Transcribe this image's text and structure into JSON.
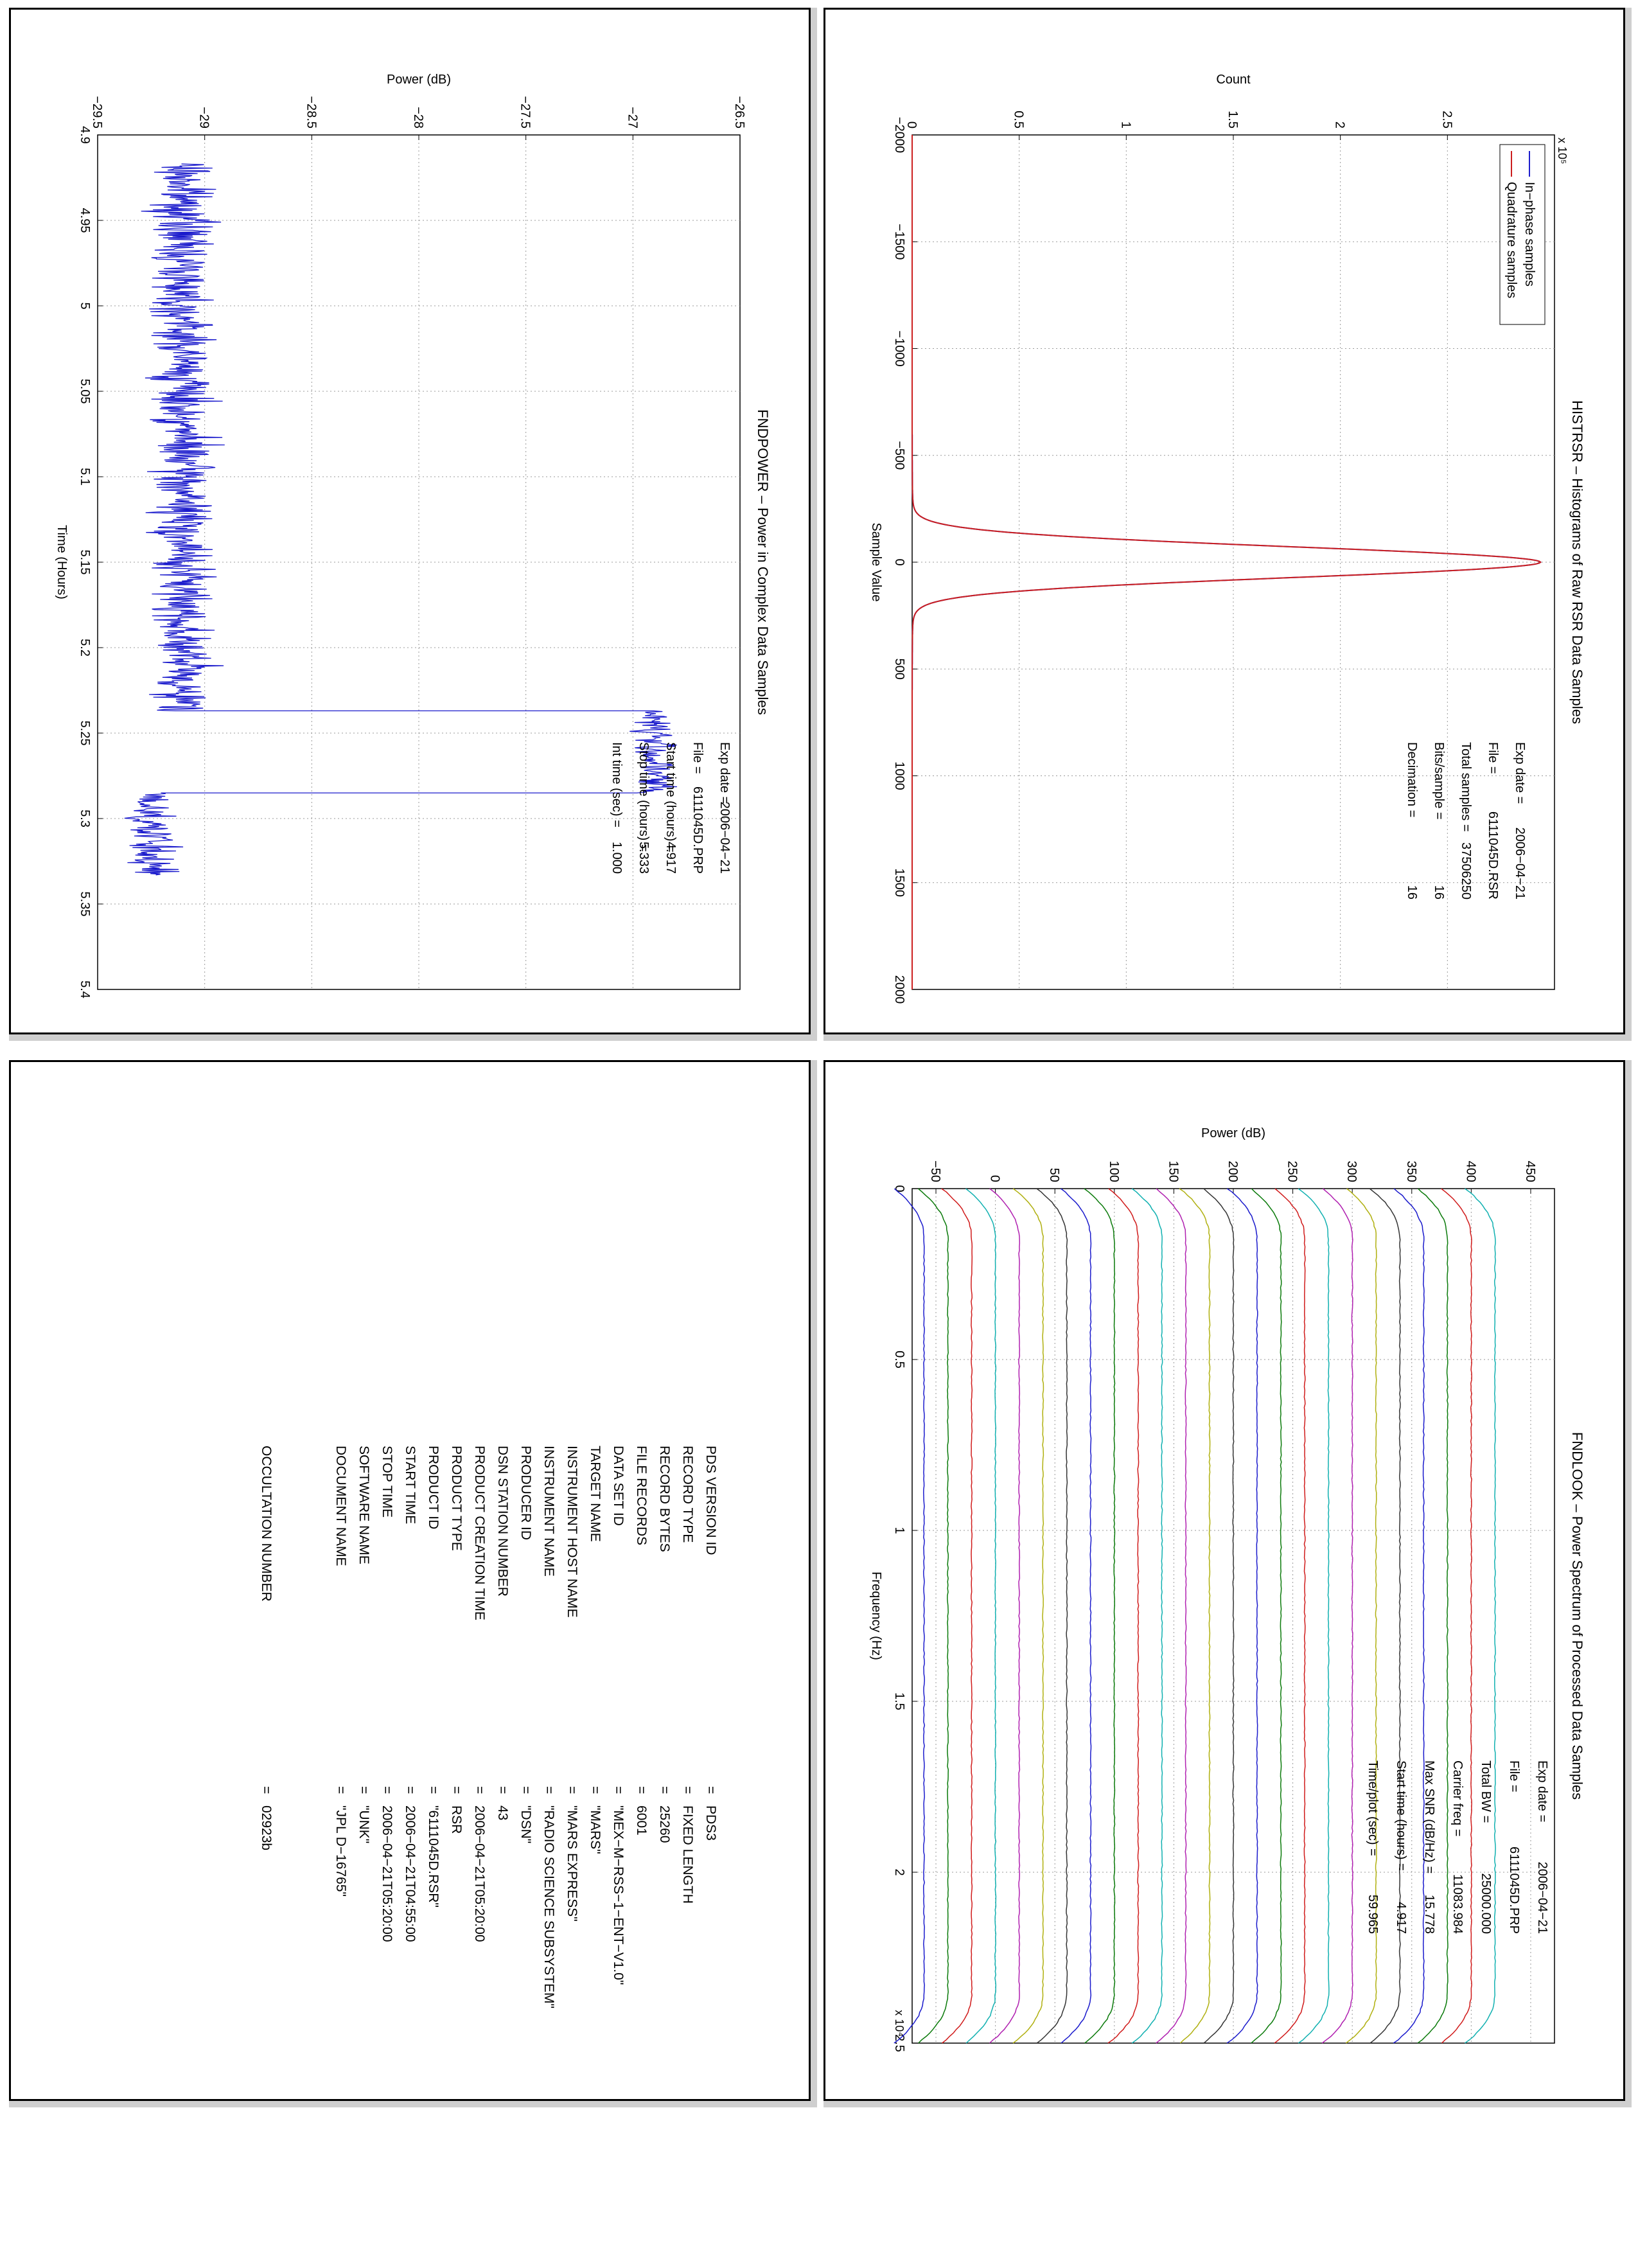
{
  "panels": {
    "histrsr": {
      "chart_data": {
        "type": "line",
        "title": "HISTRSR – Histograms of Raw RSR Data Samples",
        "xlabel": "Sample Value",
        "ylabel": "Count",
        "xlim": [
          -2000,
          2000
        ],
        "ylim": [
          0,
          300000
        ],
        "xticks": [
          "−2000",
          "−1500",
          "−1000",
          "−500",
          "0",
          "500",
          "1000",
          "1500",
          "2000"
        ],
        "yticks": [
          "0",
          "0.5",
          "1",
          "1.5",
          "2",
          "2.5"
        ],
        "yexponent": "x 10⁵",
        "series": [
          {
            "name": "In−phase samples",
            "color": "#1f1fcc",
            "peak": 290000,
            "sigma": 72
          },
          {
            "name": "Quadrature samples",
            "color": "#cc1f1f",
            "peak": 290000,
            "sigma": 72
          }
        ],
        "legend": "top-right",
        "grid": true,
        "annotations": [
          {
            "label": "Exp date",
            "value": "2006−04−21"
          },
          {
            "label": "File",
            "value": "6111045D.RSR"
          },
          {
            "label": "Total samples",
            "value": "37506250"
          },
          {
            "label": "Bits/sample",
            "value": "16"
          },
          {
            "label": "Decimation",
            "value": "16"
          }
        ]
      }
    },
    "fndpower": {
      "chart_data": {
        "type": "line",
        "title": "FNDPOWER – Power in Complex Data Samples",
        "xlabel": "Time (Hours)",
        "ylabel": "Power (dB)",
        "xlim": [
          4.9,
          5.4
        ],
        "ylim": [
          -29.5,
          -26.5
        ],
        "xticks": [
          "4.9",
          "4.95",
          "5",
          "5.05",
          "5.1",
          "5.15",
          "5.2",
          "5.25",
          "5.3",
          "5.35",
          "5.4"
        ],
        "yticks": [
          "−29.5",
          "−29",
          "−28.5",
          "−28",
          "−27.5",
          "−27",
          "−26.5"
        ],
        "series": [
          {
            "segment": "before",
            "x_range": [
              4.917,
              5.237
            ],
            "mean": -29.1,
            "noise": 0.07
          },
          {
            "segment": "middle",
            "x_range": [
              5.237,
              5.285
            ],
            "mean": -26.9,
            "noise": 0.05
          },
          {
            "segment": "after",
            "x_range": [
              5.285,
              5.333
            ],
            "mean": -29.25,
            "noise": 0.06
          }
        ],
        "color": "#1a1acc",
        "grid": true,
        "annotations": [
          {
            "label": "Exp date",
            "value": "2006−04−21"
          },
          {
            "label": "File",
            "value": "6111045D.PRP"
          },
          {
            "label": "Start time (hours)",
            "value": "4.917"
          },
          {
            "label": "Stop time (hours)",
            "value": "5.333"
          },
          {
            "label": "Int time (sec)",
            "value": "1.000"
          }
        ]
      }
    },
    "fndlook": {
      "chart_data": {
        "type": "line",
        "title": "FNDLOOK – Power Spectrum of Processed Data Samples",
        "xlabel": "Frequency (Hz)",
        "ylabel": "Power (dB)",
        "xlim": [
          0,
          25000
        ],
        "ylim": [
          -70,
          470
        ],
        "xticks": [
          "0",
          "0.5",
          "1",
          "1.5",
          "2",
          "2.5"
        ],
        "xexponent": "x 10⁴",
        "yticks": [
          "−50",
          "0",
          "50",
          "100",
          "150",
          "200",
          "250",
          "300",
          "350",
          "400",
          "450"
        ],
        "series_offsets": [
          -60,
          -40,
          -20,
          0,
          20,
          40,
          60,
          80,
          100,
          120,
          140,
          160,
          180,
          200,
          220,
          240,
          260,
          280,
          300,
          320,
          340,
          360,
          380,
          400,
          420
        ],
        "series_colors": [
          "#1a1acc",
          "#0a7a0a",
          "#d01a1a",
          "#10b0b0",
          "#b020b0",
          "#b0b010",
          "#333333"
        ],
        "flat_band": [
          1500,
          23500
        ],
        "grid": true,
        "annotations": [
          {
            "label": "Exp date",
            "value": "2006−04−21"
          },
          {
            "label": "File",
            "value": "6111045D.PRP"
          },
          {
            "label": "Total BW",
            "value": "25000.000"
          },
          {
            "label": "Carrier freq",
            "value": "11083.984"
          },
          {
            "label": "Max SNR (dB/Hz)",
            "value": "15.778"
          },
          {
            "label": "Start time (hours)",
            "value": "4.917"
          },
          {
            "label": "Time/plot (sec)",
            "value": "59.965"
          }
        ]
      }
    },
    "label": {
      "rows": [
        {
          "key": "PDS VERSION ID",
          "value": "PDS3"
        },
        {
          "key": "RECORD TYPE",
          "value": "FIXED LENGTH"
        },
        {
          "key": "RECORD BYTES",
          "value": "25260"
        },
        {
          "key": "FILE RECORDS",
          "value": "6001"
        },
        {
          "key": "DATA SET ID",
          "value": "\"MEX−M−RSS−1−ENT−V1.0\""
        },
        {
          "key": "TARGET NAME",
          "value": "\"MARS\""
        },
        {
          "key": "INSTRUMENT HOST NAME",
          "value": "\"MARS EXPRESS\""
        },
        {
          "key": "INSTRUMENT NAME",
          "value": "\"RADIO SCIENCE SUBSYSTEM\""
        },
        {
          "key": "PRODUCER ID",
          "value": "\"DSN\""
        },
        {
          "key": "DSN STATION NUMBER",
          "value": "43"
        },
        {
          "key": "PRODUCT CREATION TIME",
          "value": "2006−04−21T05:20:00"
        },
        {
          "key": "PRODUCT TYPE",
          "value": "RSR"
        },
        {
          "key": "PRODUCT ID",
          "value": "\"6111045D.RSR\""
        },
        {
          "key": "START TIME",
          "value": "2006−04−21T04:55:00"
        },
        {
          "key": "STOP TIME",
          "value": "2006−04−21T05:20:00"
        },
        {
          "key": "SOFTWARE NAME",
          "value": "\"UNK\""
        },
        {
          "key": "DOCUMENT NAME",
          "value": "\"JPL D−16765\""
        }
      ],
      "extra": {
        "key": "OCCULTATION NUMBER",
        "value": "02923b"
      },
      "eq": "="
    }
  }
}
